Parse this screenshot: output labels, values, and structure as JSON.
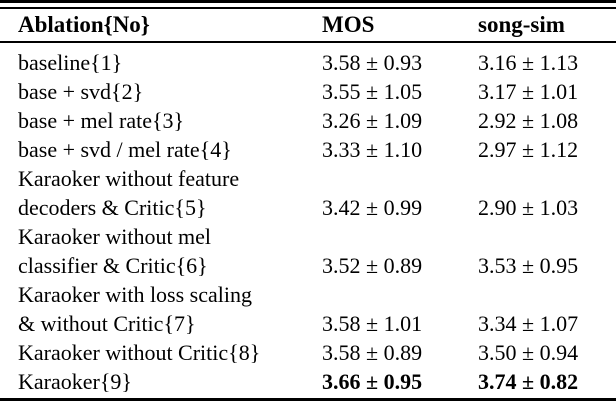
{
  "table": {
    "columns": {
      "ablation": "Ablation{No}",
      "mos": "MOS",
      "songsim": "song-sim"
    },
    "rows": [
      {
        "label": "baseline{1}",
        "mos": "3.58 ± 0.93",
        "songsim": "3.16 ± 1.13",
        "emphasis": "normal"
      },
      {
        "label": "base + svd{2}",
        "mos": "3.55 ± 1.05",
        "songsim": "3.17 ± 1.01",
        "emphasis": "normal"
      },
      {
        "label": "base + mel rate{3}",
        "mos": "3.26 ± 1.09",
        "songsim": "2.92 ± 1.08",
        "emphasis": "normal"
      },
      {
        "label": "base + svd / mel rate{4}",
        "mos": "3.33 ± 1.10",
        "songsim": "2.97 ± 1.12",
        "emphasis": "normal"
      },
      {
        "label": "Karaoker without feature\ndecoders & Critic{5}",
        "mos": "3.42 ± 0.99",
        "songsim": "2.90 ± 1.03",
        "emphasis": "normal"
      },
      {
        "label": "Karaoker without mel\nclassifier & Critic{6}",
        "mos": "3.52 ± 0.89",
        "songsim": "3.53 ± 0.95",
        "emphasis": "normal"
      },
      {
        "label": "Karaoker with loss scaling\n& without Critic{7}",
        "mos": "3.58 ± 1.01",
        "songsim": "3.34 ± 1.07",
        "emphasis": "normal"
      },
      {
        "label": "Karaoker without Critic{8}",
        "mos": "3.58 ± 0.89",
        "songsim": "3.50 ± 0.94",
        "emphasis": "normal"
      },
      {
        "label": "Karaoker{9}",
        "mos": "3.66 ± 0.95",
        "songsim": "3.74 ± 0.82",
        "emphasis": "bold-values"
      }
    ],
    "colors": {
      "text": "#000000",
      "background": "#ffffff",
      "rule": "#000000"
    }
  }
}
